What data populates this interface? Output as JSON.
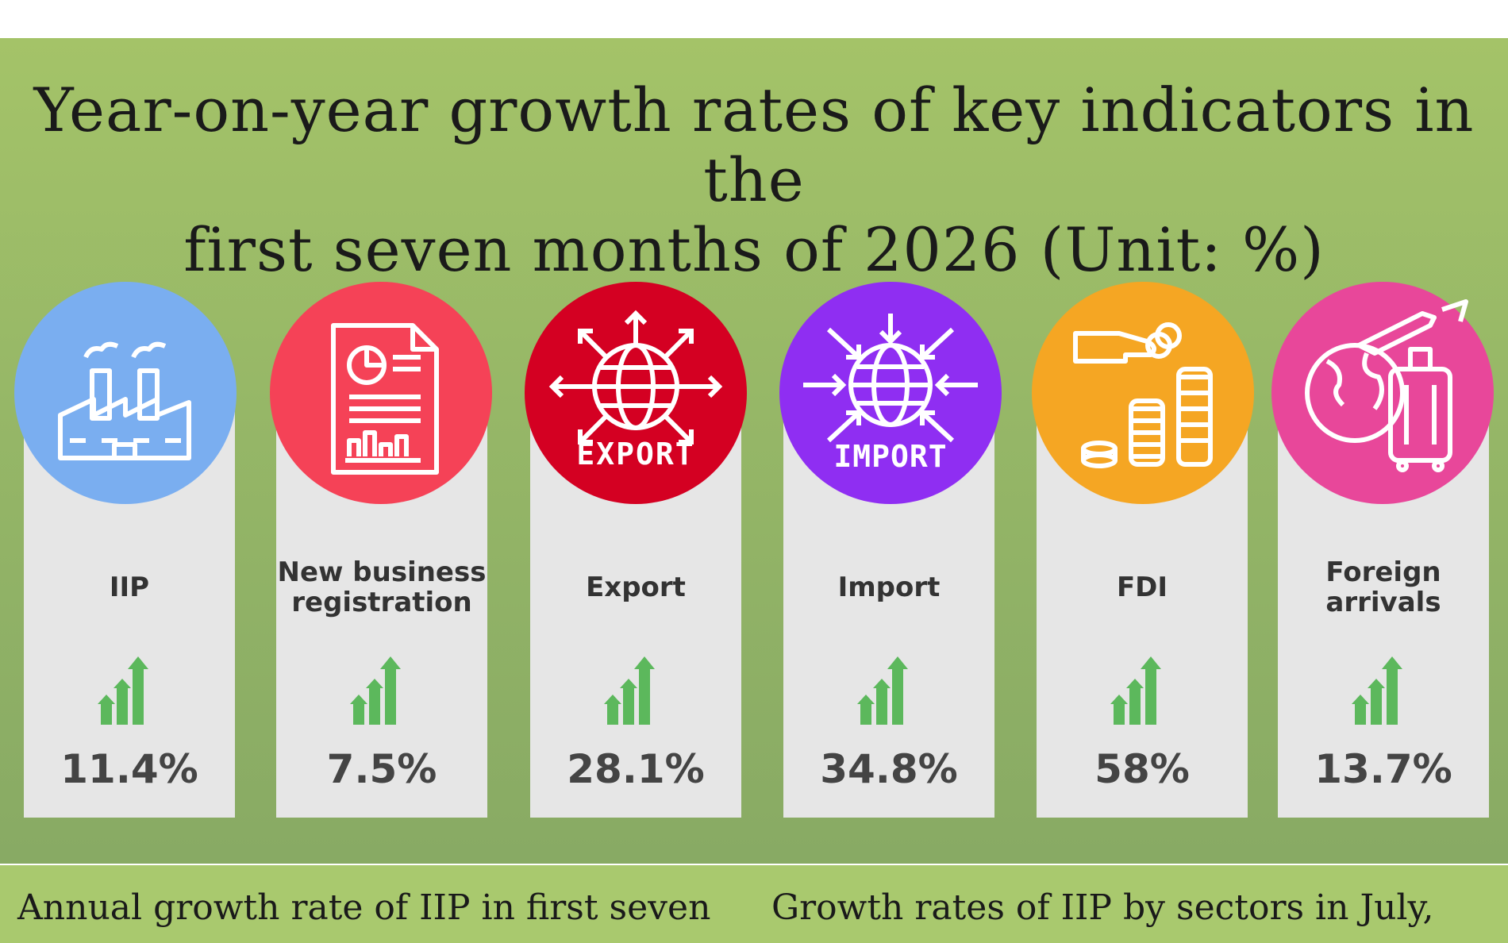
{
  "title": {
    "line1": "Year-on-year growth rates of  key indicators in  the",
    "line2": "first seven months of 2026 (Unit: %)"
  },
  "indicators": [
    {
      "label": "IIP",
      "value": "11.4%",
      "color": "#7aaef0",
      "icon": "factory-icon"
    },
    {
      "label": "New business registration",
      "value": "7.5%",
      "color": "#f54257",
      "icon": "report-document-icon"
    },
    {
      "label": "Export",
      "value": "28.1%",
      "color": "#d40022",
      "icon": "export-globe-icon",
      "badge": "EXPORT"
    },
    {
      "label": "Import",
      "value": "34.8%",
      "color": "#8f2ef2",
      "icon": "import-globe-icon",
      "badge": "IMPORT"
    },
    {
      "label": "FDI",
      "value": "58%",
      "color": "#f5a623",
      "icon": "money-hand-coins-icon"
    },
    {
      "label": "Foreign arrivals",
      "value": "13.7%",
      "color": "#e8479a",
      "icon": "travel-globe-luggage-icon"
    }
  ],
  "growth_icon_color": "#5cb85c",
  "subtitles": {
    "left": "Annual growth rate of IIP in first seven",
    "right": "Growth rates of IIP by sectors in July,"
  }
}
